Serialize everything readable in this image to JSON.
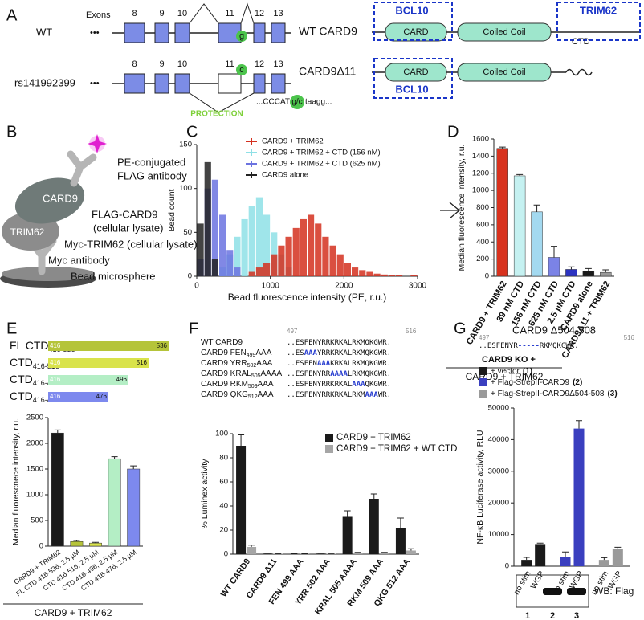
{
  "panel_letters": [
    "A",
    "B",
    "C",
    "D",
    "E",
    "F",
    "G"
  ],
  "panels": {
    "A": {
      "exons_label": "Exons",
      "dots": "•••",
      "exons": [
        "8",
        "9",
        "10",
        "11",
        "12",
        "13"
      ],
      "wt_label": "WT",
      "variant_label": "rs141992399",
      "wt_allele": "g",
      "variant_allele": "c",
      "protection": "PROTECTION",
      "sequence": [
        "...CCCAT",
        "g/c",
        "taagg..."
      ],
      "proteins": {
        "wt_name": "WT CARD9",
        "delta_name": "CARD9Δ11",
        "card": "CARD",
        "coiled_coil": "Coiled Coil",
        "ctd": "CTD",
        "bcl10": "BCL10",
        "trim62": "TRIM62"
      }
    },
    "B": {
      "labels": [
        "PE-conjugated",
        "FLAG antibody",
        "FLAG-CARD9",
        "(cellular lysate)",
        "Myc-TRIM62 (cellular lysate)",
        "Myc antibody",
        "Bead microsphere"
      ],
      "card9": "CARD9",
      "trim62": "TRIM62"
    },
    "E": {
      "constructs": [
        {
          "name": "FL CTD",
          "range": "416-536",
          "start": 416,
          "end": 536,
          "color": "#b5c43a"
        },
        {
          "name": "CTD",
          "range": "416-516",
          "start": 416,
          "end": 516,
          "color": "#d9e34b"
        },
        {
          "name": "CTD",
          "range": "416-496",
          "start": 416,
          "end": 496,
          "color": "#b4eec5"
        },
        {
          "name": "CTD",
          "range": "416-476",
          "start": 416,
          "end": 476,
          "color": "#7d89ee"
        }
      ]
    },
    "F": {
      "start": 497,
      "end": 516,
      "rows": [
        {
          "name": [
            {
              "text": "WT CARD9"
            }
          ],
          "seq": [
            {
              "text": "..ESFENYRRKRKALRKMQKGWR."
            }
          ]
        },
        {
          "name": [
            {
              "text": "CARD9 FEN"
            },
            {
              "text": "499",
              "sub": true
            },
            {
              "text": "AAA"
            }
          ],
          "seq": [
            {
              "text": "..ES"
            },
            {
              "text": "AAA",
              "mut": true
            },
            {
              "text": "YRRKRKALRKMQKGWR."
            }
          ]
        },
        {
          "name": [
            {
              "text": "CARD9 YRR"
            },
            {
              "text": "502",
              "sub": true
            },
            {
              "text": "AAA"
            }
          ],
          "seq": [
            {
              "text": "..ESFEN"
            },
            {
              "text": "AAA",
              "mut": true
            },
            {
              "text": "KRKALRKMQKGWR."
            }
          ]
        },
        {
          "name": [
            {
              "text": "CARD9 KRAL"
            },
            {
              "text": "505",
              "sub": true
            },
            {
              "text": "AAAA"
            }
          ],
          "seq": [
            {
              "text": "..ESFENYRR"
            },
            {
              "text": "AAAA",
              "mut": true
            },
            {
              "text": "LRKMQKGWR."
            }
          ]
        },
        {
          "name": [
            {
              "text": "CARD9 RKM"
            },
            {
              "text": "509",
              "sub": true
            },
            {
              "text": "AAA"
            }
          ],
          "seq": [
            {
              "text": "..ESFENYRRKRKAL"
            },
            {
              "text": "AAA",
              "mut": true
            },
            {
              "text": "QKGWR."
            }
          ]
        },
        {
          "name": [
            {
              "text": "CARD9 QKG"
            },
            {
              "text": "512",
              "sub": true
            },
            {
              "text": "AAA"
            }
          ],
          "seq": [
            {
              "text": "..ESFENYRRKRKALRKM"
            },
            {
              "text": "AAA",
              "mut": true
            },
            {
              "text": "WR."
            }
          ]
        }
      ]
    },
    "G": {
      "title": "CARD9 Δ504-508",
      "start": 497,
      "end": 516,
      "seq": [
        {
          "text": "..ESFENYR"
        },
        {
          "text": "-----",
          "mut": true
        },
        {
          "text": "RKMQKGWR."
        }
      ],
      "blot": {
        "label": "WB: Flag",
        "lanes": [
          "1",
          "2",
          "3"
        ]
      }
    }
  },
  "chart_data": [
    {
      "type": "histogram",
      "ylabel": "Bead count",
      "xlabel": "Bead fluorescence intensity (PE, r.u.)",
      "bins": [
        0,
        100,
        200,
        300,
        400,
        500,
        600,
        700,
        800,
        900,
        1000,
        1100,
        1200,
        1300,
        1400,
        1500,
        1600,
        1700,
        1800,
        1900,
        2000,
        2100,
        2200,
        2300,
        2400,
        2500,
        2600,
        2700,
        2800,
        2900,
        3000
      ],
      "series": [
        {
          "name": "CARD9 + TRIM62",
          "color": "#d4301f",
          "values": [
            0,
            0,
            0,
            0,
            0,
            0,
            0,
            5,
            10,
            15,
            25,
            35,
            45,
            55,
            65,
            70,
            60,
            45,
            35,
            25,
            15,
            10,
            7,
            5,
            3,
            2,
            1,
            1,
            0,
            1
          ]
        },
        {
          "name": "CARD9 + TRIM62 + CTD (156 nM)",
          "color": "#8ee0e6",
          "values": [
            0,
            0,
            0,
            10,
            25,
            45,
            65,
            80,
            90,
            70,
            50,
            25,
            10,
            0,
            0,
            0,
            0,
            0,
            0,
            0,
            0,
            0,
            0,
            0,
            0,
            0,
            0,
            0,
            0,
            0
          ]
        },
        {
          "name": "CARD9 + TRIM62 + CTD (625 nM)",
          "color": "#6b73e0",
          "values": [
            20,
            100,
            110,
            70,
            30,
            10,
            0,
            0,
            0,
            0,
            0,
            0,
            0,
            0,
            0,
            0,
            0,
            0,
            0,
            0,
            0,
            0,
            0,
            0,
            0,
            0,
            0,
            0,
            0,
            0
          ]
        },
        {
          "name": "CARD9 alone",
          "color": "#222222",
          "values": [
            60,
            130,
            20,
            0,
            0,
            0,
            0,
            0,
            0,
            0,
            0,
            0,
            0,
            0,
            0,
            0,
            0,
            0,
            0,
            0,
            0,
            0,
            0,
            0,
            0,
            0,
            0,
            0,
            0,
            0
          ]
        }
      ],
      "xlim": [
        0,
        3000
      ],
      "ylim": [
        0,
        150
      ],
      "xticks": [
        0,
        1000,
        2000,
        3000
      ],
      "yticks": [
        0,
        50,
        100,
        150
      ]
    },
    {
      "type": "bar",
      "ylabel": "Median fluorescence intensity, r.u.",
      "categories": [
        "CARD9 + TRIM62",
        "39 nM CTD",
        "156 nM CTD",
        "625 nM CTD",
        "2.5 µM CTD",
        "CARD9 alone",
        "CARD9Δ11 + TRIM62"
      ],
      "values": [
        1490,
        1170,
        750,
        220,
        80,
        60,
        45
      ],
      "errors": [
        15,
        15,
        80,
        130,
        30,
        30,
        30
      ],
      "colors": [
        "#d8321e",
        "#c5f1f1",
        "#a3d9f0",
        "#7b83e6",
        "#2c33c1",
        "#1a1a1a",
        "#999999"
      ],
      "group_label": "CARD9 + TRIM62",
      "ylim": [
        0,
        1600
      ],
      "yticks": [
        0,
        200,
        400,
        600,
        800,
        1000,
        1200,
        1400,
        1600
      ]
    },
    {
      "type": "bar",
      "ylabel": "Median fluorescnece intensity, r.u.",
      "categories": [
        "CARD9 + TRIM62",
        "FL CTD 416-536, 2.5 µM",
        "CTD 416-516, 2.5 µM",
        "CTD 416-496, 2.5 µM",
        "CTD 416-476, 2.5 µM"
      ],
      "values": [
        2200,
        90,
        60,
        1700,
        1500
      ],
      "errors": [
        60,
        20,
        15,
        40,
        60
      ],
      "colors": [
        "#1a1a1a",
        "#b6c43a",
        "#d9e34b",
        "#b4eec5",
        "#7d89ee"
      ],
      "group_label": "CARD9 + TRIM62",
      "ylim": [
        0,
        2500
      ],
      "yticks": [
        0,
        500,
        1000,
        1500,
        2000,
        2500
      ]
    },
    {
      "type": "bar",
      "ylabel": "% Luminex activity",
      "categories": [
        "WT CARD9",
        "CARD9 Δ11",
        "FEN 499 AAA",
        "YRR 502 AAA",
        "KRAL 505 AAAA",
        "RKM 509 AAA",
        "QKG 512 AAA"
      ],
      "series": [
        {
          "name": "CARD9 + TRIM62",
          "color": "#1a1a1a",
          "values": [
            90,
            0.5,
            0.3,
            0.5,
            31,
            46,
            22
          ],
          "errors": [
            9,
            0.3,
            0.2,
            0.3,
            5,
            4,
            8
          ]
        },
        {
          "name": "CARD9 + TRIM62 + WT CTD",
          "color": "#a6a6a6",
          "values": [
            6,
            0.3,
            0.2,
            0.3,
            1,
            1,
            3
          ],
          "errors": [
            1.5,
            0.1,
            0.1,
            0.2,
            0.5,
            0.5,
            1.5
          ]
        }
      ],
      "ylim": [
        0,
        100
      ],
      "yticks": [
        0,
        20,
        40,
        60,
        80,
        100
      ]
    },
    {
      "type": "bar",
      "ylabel": "NF-κB Luciferase activity, RLU",
      "legend_title": "CARD9 KO +",
      "categories": [
        "no stim",
        "WGP"
      ],
      "series": [
        {
          "name": "+ vector",
          "tag": "(1)",
          "color": "#1a1a1a",
          "values": [
            2000,
            7000
          ],
          "errors": [
            800,
            300
          ]
        },
        {
          "name": "+ Flag-StrepII-CARD9",
          "tag": "(2)",
          "color": "#3a3fbf",
          "values": [
            3000,
            43500
          ],
          "errors": [
            1500,
            2500
          ]
        },
        {
          "name": "+ Flag-StrepII-CARD9Δ504-508",
          "tag": "(3)",
          "color": "#9a9a9a",
          "values": [
            2000,
            5500
          ],
          "errors": [
            700,
            500
          ]
        }
      ],
      "ylim": [
        0,
        50000
      ],
      "yticks": [
        0,
        10000,
        20000,
        30000,
        40000,
        50000
      ]
    }
  ]
}
